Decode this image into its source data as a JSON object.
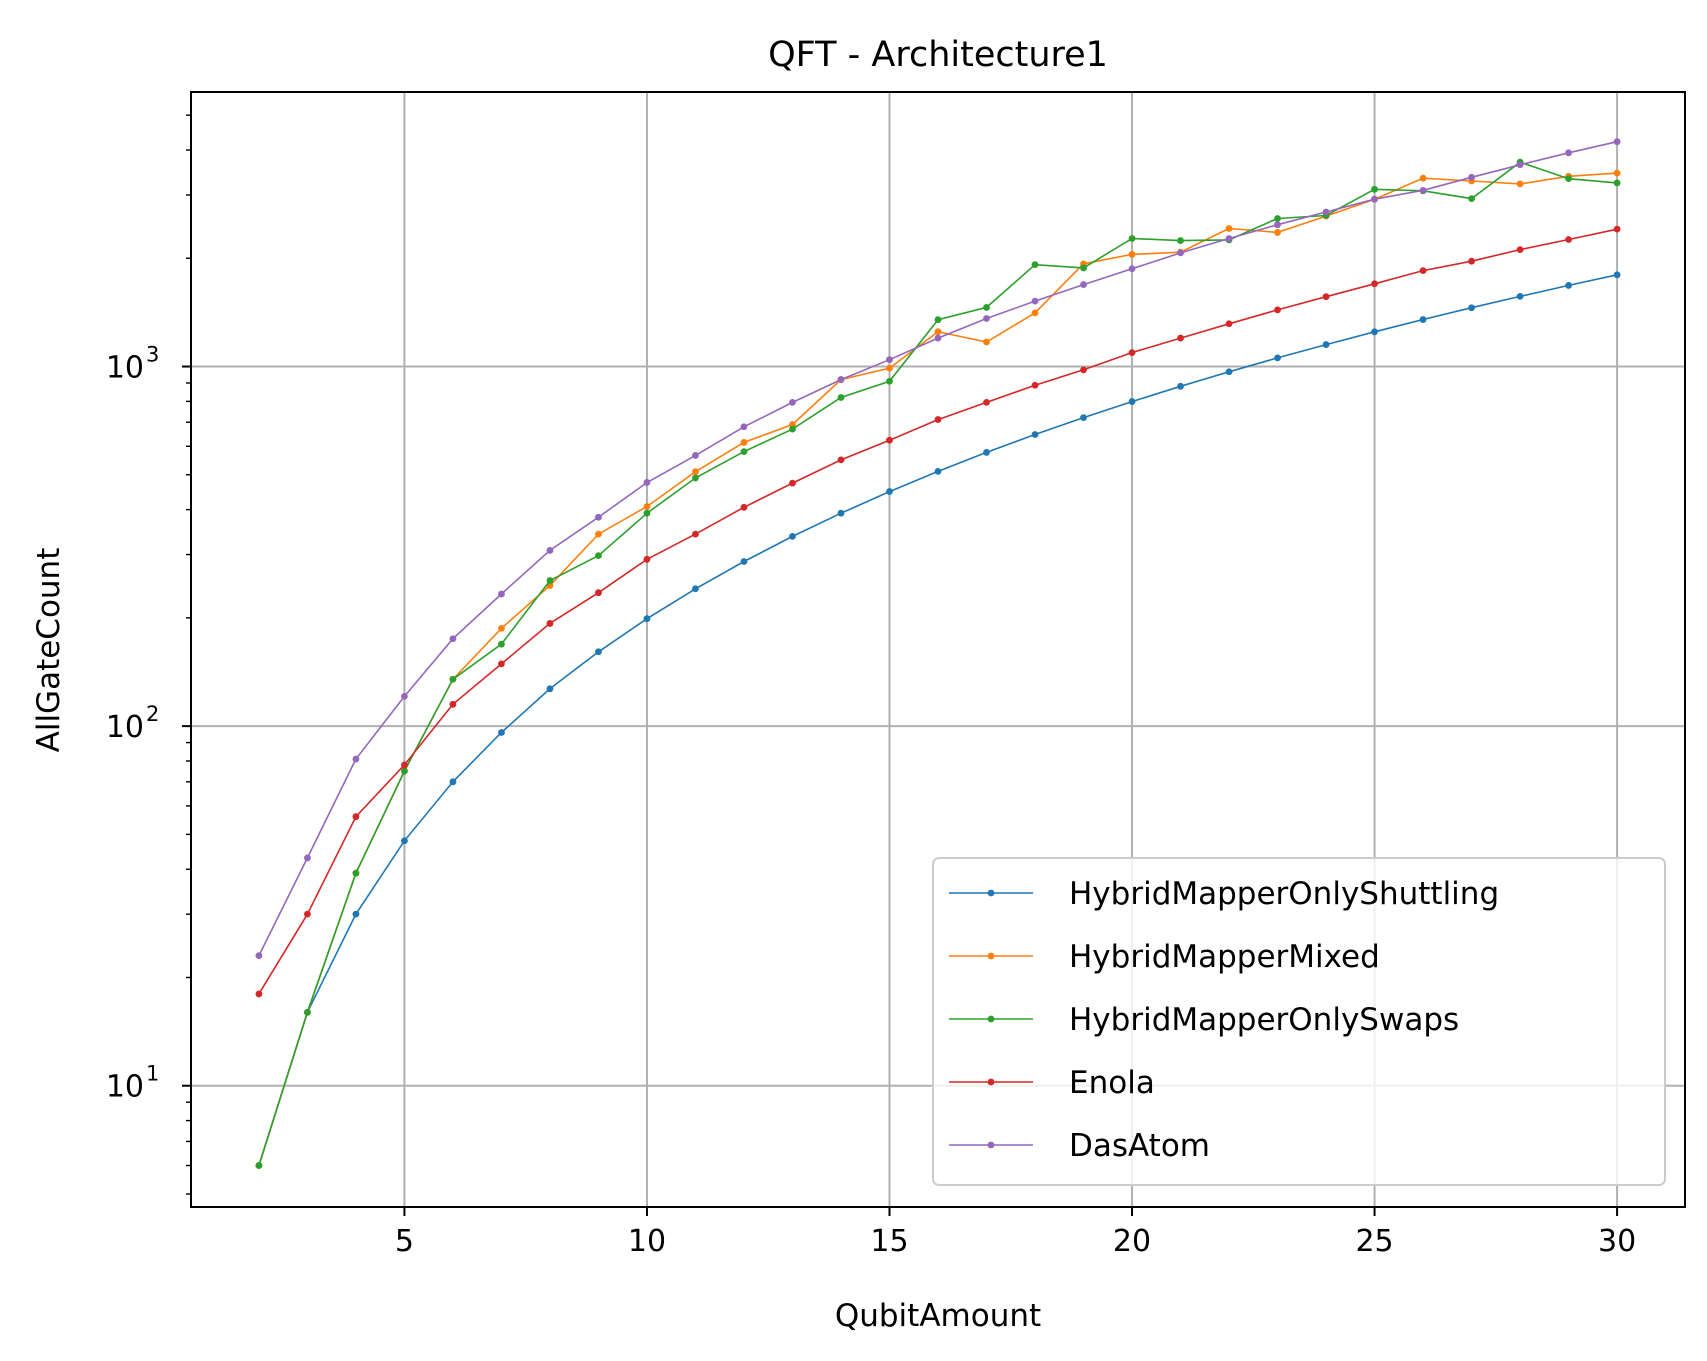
{
  "chart_data": {
    "type": "line",
    "title": "QFT - Architecture1",
    "xlabel": "QubitAmount",
    "ylabel": "AllGateCount",
    "yscale": "log",
    "xlim": [
      0.6,
      31.4
    ],
    "ylim": [
      4.6,
      5800
    ],
    "xticks": [
      5,
      10,
      15,
      20,
      25,
      30
    ],
    "xtick_labels": [
      "5",
      "10",
      "15",
      "20",
      "25",
      "30"
    ],
    "yticks": [
      10,
      100,
      1000
    ],
    "ytick_labels": [
      "10",
      "10",
      "10"
    ],
    "ytick_exponents": [
      "1",
      "2",
      "3"
    ],
    "grid": true,
    "legend_position": "lower-right",
    "x": [
      2,
      3,
      4,
      5,
      6,
      7,
      8,
      9,
      10,
      11,
      12,
      13,
      14,
      15,
      16,
      17,
      18,
      19,
      20,
      21,
      22,
      23,
      24,
      25,
      26,
      27,
      28,
      29,
      30
    ],
    "series": [
      {
        "name": "HybridMapperOnlyShuttling",
        "color": "#1f77b4",
        "values": [
          6,
          16,
          30,
          48,
          70,
          96,
          127,
          161,
          199,
          241,
          287,
          337,
          391,
          449,
          511,
          577,
          647,
          721,
          799,
          881,
          967,
          1057,
          1151,
          1249,
          1351,
          1457,
          1567,
          1681,
          1799
        ]
      },
      {
        "name": "HybridMapperMixed",
        "color": "#ff7f0e",
        "values": [
          6,
          16,
          39,
          75,
          135,
          187,
          246,
          342,
          408,
          510,
          615,
          690,
          920,
          990,
          1250,
          1170,
          1410,
          1930,
          2050,
          2080,
          2420,
          2360,
          2620,
          2920,
          3340,
          3280,
          3220,
          3380,
          3450
        ]
      },
      {
        "name": "HybridMapperOnlySwaps",
        "color": "#2ca02c",
        "values": [
          6,
          16,
          39,
          75,
          135,
          169,
          254,
          298,
          391,
          490,
          580,
          670,
          820,
          910,
          1350,
          1460,
          1920,
          1880,
          2270,
          2240,
          2250,
          2580,
          2630,
          3110,
          3080,
          2930,
          3700,
          3330,
          3240
        ]
      },
      {
        "name": "Enola",
        "color": "#d62728",
        "values": [
          18,
          30,
          56,
          78,
          115,
          149,
          193,
          235,
          291,
          342,
          406,
          474,
          550,
          624,
          712,
          795,
          887,
          979,
          1093,
          1200,
          1315,
          1437,
          1564,
          1699,
          1848,
          1963,
          2114,
          2256,
          2410
        ]
      },
      {
        "name": "DasAtom",
        "color": "#9467bd",
        "values": [
          23,
          43,
          81,
          121,
          175,
          233,
          308,
          381,
          476,
          566,
          680,
          795,
          920,
          1045,
          1200,
          1360,
          1520,
          1690,
          1870,
          2070,
          2270,
          2480,
          2690,
          2920,
          3090,
          3360,
          3640,
          3930,
          4220
        ]
      }
    ]
  }
}
